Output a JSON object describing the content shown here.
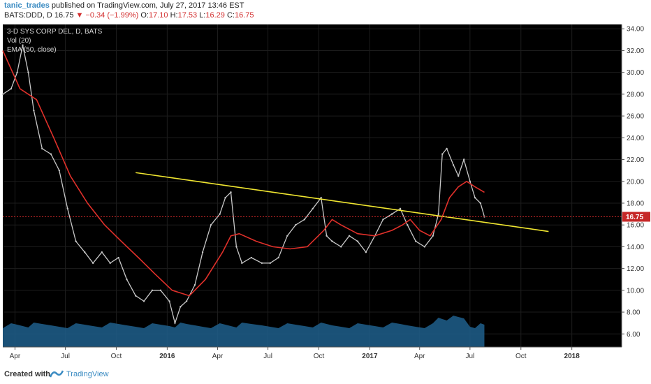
{
  "header": {
    "author": "tanic_trades",
    "published_text": "published on TradingView.com, July 27, 2017 13:46 EST",
    "symbol": "BATS:DDD, D",
    "last": "16.75",
    "change": "▼ −0.34 (−1.99%)",
    "open_label": "O:",
    "open": "17.10",
    "high_label": "H:",
    "high": "17.53",
    "low_label": "L:",
    "low": "16.29",
    "close_label": "C:",
    "close": "16.75"
  },
  "legend": {
    "line1": "3-D SYS CORP DEL, D, BATS",
    "line2": "Vol (20)",
    "line3": "EMA (50, close)"
  },
  "footer": {
    "created_with": "Created with",
    "brand": "TradingView"
  },
  "colors": {
    "background": "#000000",
    "candles": "#c8c8c8",
    "ema": "#e0302a",
    "trendline": "#f0e630",
    "price_line": "#c62828",
    "volume": "#1e5f8c"
  },
  "chart_data": {
    "type": "line",
    "title": "3-D SYS CORP DEL, D, BATS",
    "y_ticks": [
      "6.00",
      "8.00",
      "10.00",
      "12.00",
      "14.00",
      "16.00",
      "18.00",
      "20.00",
      "22.00",
      "24.00",
      "26.00",
      "28.00",
      "30.00",
      "32.00",
      "34.00"
    ],
    "ylim": [
      4.8,
      34.4
    ],
    "x_ticks": [
      "Apr",
      "Jul",
      "Oct",
      "2016",
      "Apr",
      "Jul",
      "Oct",
      "2017",
      "Apr",
      "Jul",
      "Oct",
      "2018"
    ],
    "x_tick_dates": [
      "2015-04-01",
      "2015-07-01",
      "2015-10-01",
      "2016-01-01",
      "2016-04-01",
      "2016-07-01",
      "2016-10-01",
      "2017-01-01",
      "2017-04-01",
      "2017-07-01",
      "2017-10-01",
      "2018-01-01"
    ],
    "xlim": [
      "2015-03-10",
      "2018-04-01"
    ],
    "last_price": 16.75,
    "last_price_label": "16.75",
    "series": [
      {
        "kind": "price",
        "x": [
          "2015-03-10",
          "2015-03-25",
          "2015-04-05",
          "2015-04-15",
          "2015-04-25",
          "2015-05-05",
          "2015-05-20",
          "2015-06-05",
          "2015-06-20",
          "2015-07-05",
          "2015-07-20",
          "2015-08-05",
          "2015-08-20",
          "2015-09-05",
          "2015-09-20",
          "2015-10-05",
          "2015-10-20",
          "2015-11-05",
          "2015-11-20",
          "2015-12-05",
          "2015-12-20",
          "2016-01-05",
          "2016-01-15",
          "2016-01-25",
          "2016-02-05",
          "2016-02-20",
          "2016-03-05",
          "2016-03-20",
          "2016-04-05",
          "2016-04-15",
          "2016-04-25",
          "2016-05-05",
          "2016-05-15",
          "2016-06-01",
          "2016-06-20",
          "2016-07-05",
          "2016-07-20",
          "2016-08-05",
          "2016-08-20",
          "2016-09-05",
          "2016-09-20",
          "2016-10-05",
          "2016-10-15",
          "2016-10-25",
          "2016-11-10",
          "2016-11-25",
          "2016-12-10",
          "2016-12-25",
          "2017-01-10",
          "2017-01-25",
          "2017-02-10",
          "2017-02-25",
          "2017-03-10",
          "2017-03-25",
          "2017-04-10",
          "2017-04-25",
          "2017-05-05",
          "2017-05-12",
          "2017-05-20",
          "2017-06-01",
          "2017-06-10",
          "2017-06-20",
          "2017-07-01",
          "2017-07-10",
          "2017-07-20",
          "2017-07-27"
        ],
        "values": [
          28.0,
          28.5,
          30.0,
          32.5,
          30.0,
          26.5,
          23.0,
          22.5,
          21.0,
          17.5,
          14.5,
          13.5,
          12.5,
          13.5,
          12.5,
          13.0,
          11.0,
          9.5,
          9.0,
          10.0,
          10.0,
          9.0,
          7.0,
          8.5,
          9.0,
          10.5,
          13.5,
          16.0,
          17.0,
          18.5,
          19.0,
          14.0,
          12.5,
          13.0,
          12.5,
          12.5,
          13.0,
          15.0,
          16.0,
          16.5,
          17.5,
          18.5,
          15.0,
          14.5,
          14.0,
          15.0,
          14.5,
          13.5,
          15.0,
          16.5,
          17.0,
          17.5,
          16.0,
          14.5,
          14.0,
          15.0,
          17.0,
          22.5,
          23.0,
          21.5,
          20.5,
          22.0,
          20.0,
          18.5,
          18.0,
          16.75
        ]
      },
      {
        "kind": "ema",
        "name": "EMA (50, close)",
        "x": [
          "2015-03-10",
          "2015-04-10",
          "2015-05-10",
          "2015-06-10",
          "2015-07-10",
          "2015-08-10",
          "2015-09-10",
          "2015-10-10",
          "2015-11-10",
          "2015-12-10",
          "2016-01-10",
          "2016-02-10",
          "2016-03-10",
          "2016-04-10",
          "2016-04-25",
          "2016-05-10",
          "2016-06-10",
          "2016-07-10",
          "2016-08-10",
          "2016-09-10",
          "2016-10-10",
          "2016-10-25",
          "2016-11-10",
          "2016-12-10",
          "2017-01-10",
          "2017-02-10",
          "2017-03-01",
          "2017-03-15",
          "2017-04-01",
          "2017-04-20",
          "2017-05-10",
          "2017-05-25",
          "2017-06-10",
          "2017-06-25",
          "2017-07-10",
          "2017-07-27"
        ],
        "values": [
          32.0,
          28.5,
          27.5,
          24.0,
          20.5,
          18.0,
          16.0,
          14.5,
          13.0,
          11.5,
          10.0,
          9.5,
          11.0,
          13.5,
          15.0,
          15.2,
          14.5,
          14.0,
          13.8,
          14.0,
          15.5,
          16.5,
          16.0,
          15.2,
          15.0,
          15.5,
          16.0,
          16.5,
          15.5,
          15.0,
          16.5,
          18.5,
          19.5,
          20.0,
          19.5,
          19.0
        ]
      }
    ],
    "trendline": {
      "start": [
        "2015-11-05",
        20.8
      ],
      "end": [
        "2017-11-20",
        15.4
      ]
    }
  }
}
